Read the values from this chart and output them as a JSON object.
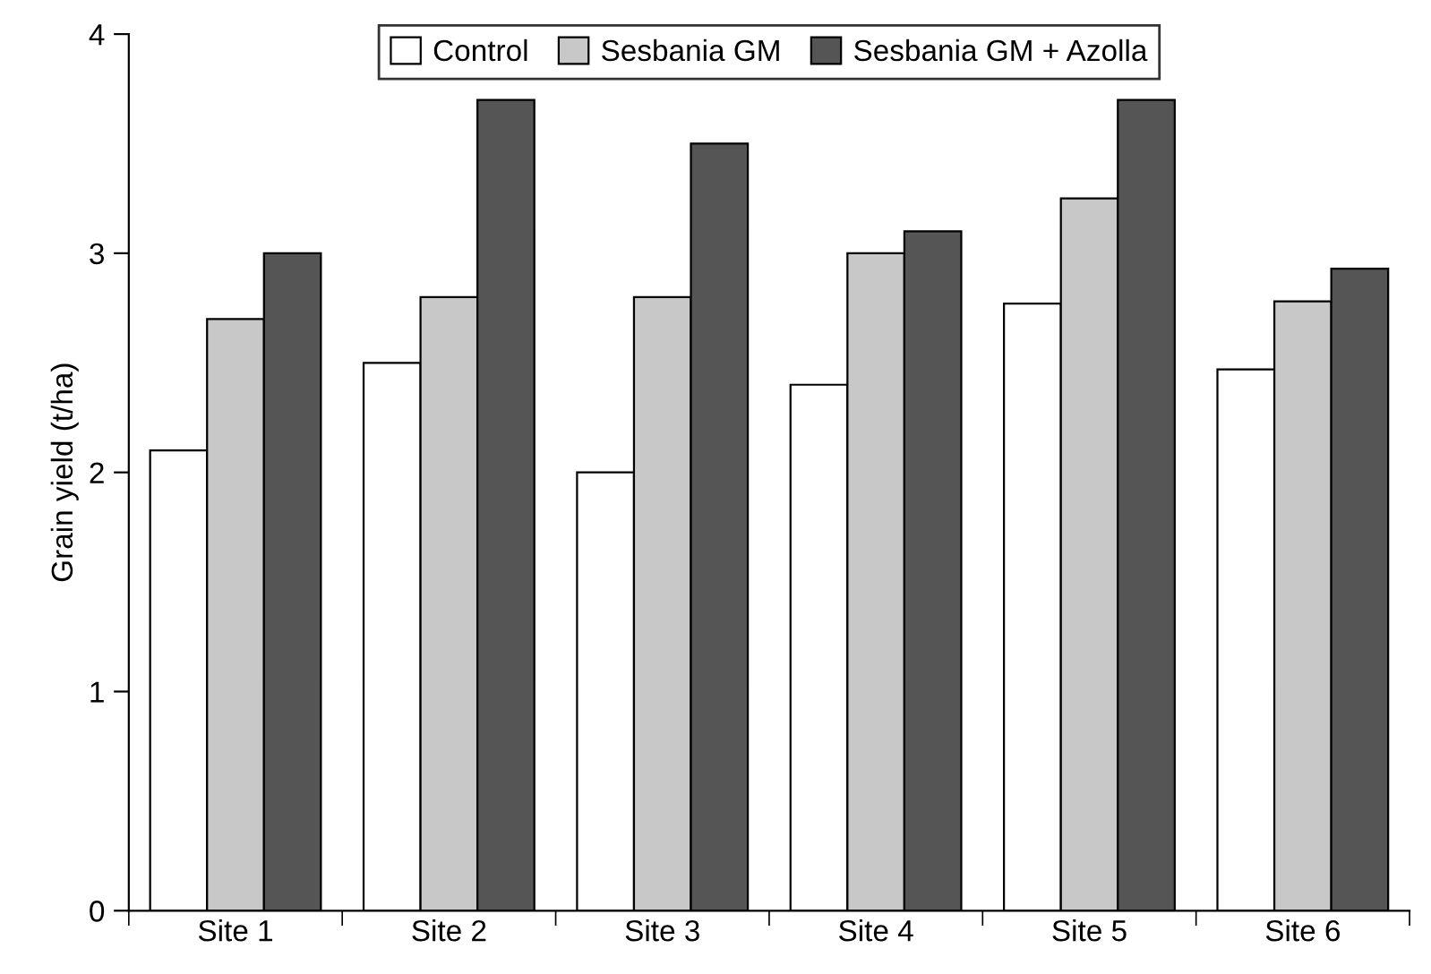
{
  "chart_data": {
    "type": "bar",
    "ylabel": "Grain yield (t/ha)",
    "categories": [
      "Site 1",
      "Site 2",
      "Site 3",
      "Site 4",
      "Site 5",
      "Site 6"
    ],
    "series": [
      {
        "name": "Control",
        "color": "#ffffff",
        "values": [
          2.1,
          2.5,
          2.0,
          2.4,
          2.77,
          2.47
        ]
      },
      {
        "name": "Sesbania GM",
        "color": "#c8c8c8",
        "values": [
          2.7,
          2.8,
          2.8,
          3.0,
          3.25,
          2.78
        ]
      },
      {
        "name": "Sesbania GM + Azolla",
        "color": "#555555",
        "values": [
          3.0,
          3.7,
          3.5,
          3.1,
          3.7,
          2.93
        ]
      }
    ],
    "ylim": [
      0,
      4
    ],
    "yticks": [
      0,
      1,
      2,
      3,
      4
    ],
    "grid": false,
    "legend": "top"
  }
}
